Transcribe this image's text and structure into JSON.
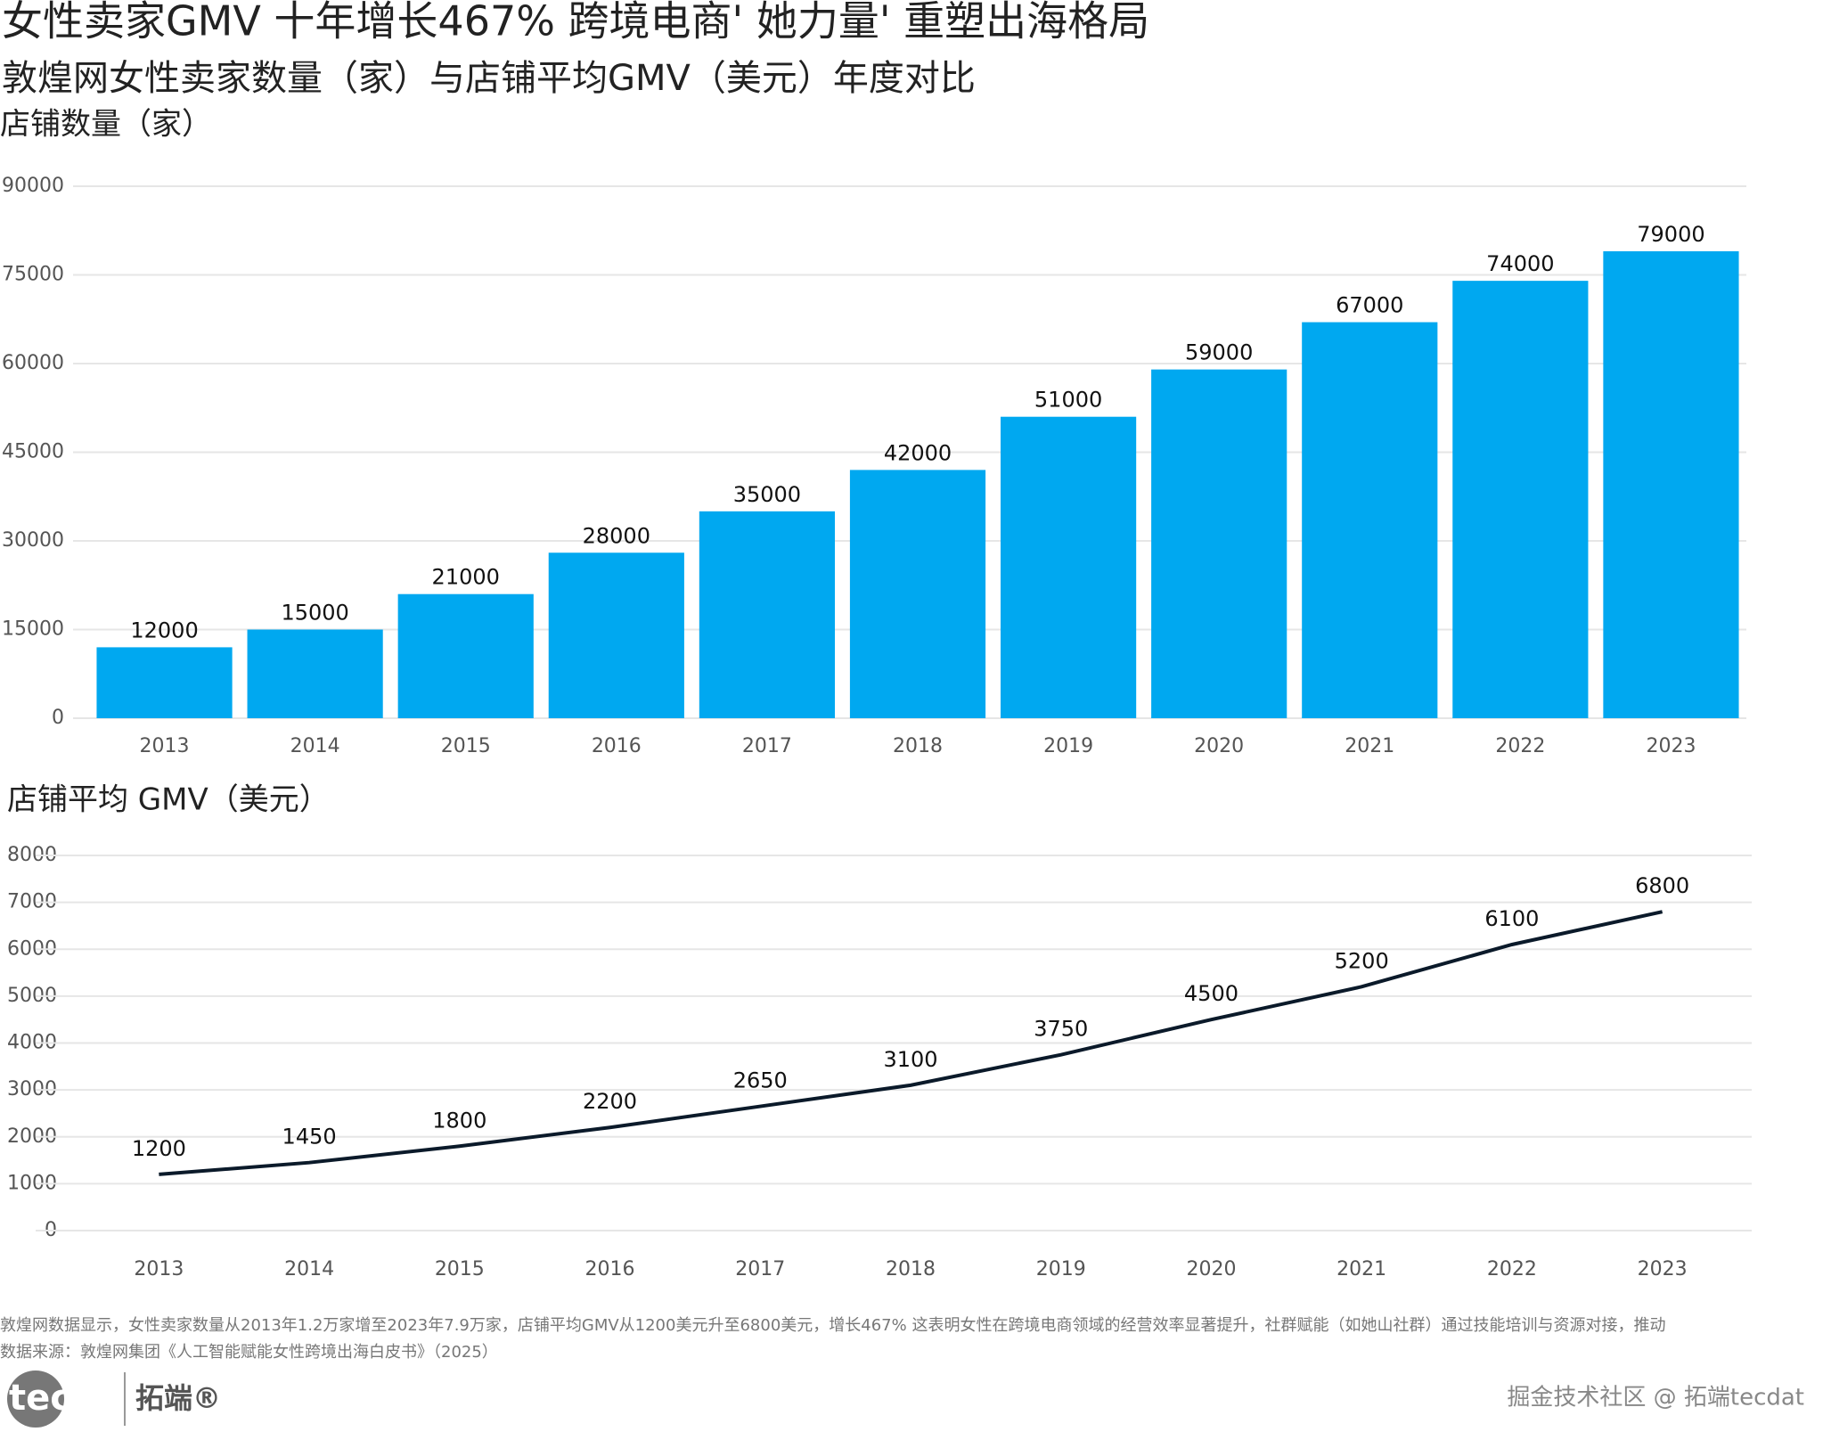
{
  "header": {
    "title": "女性卖家GMV 十年增长467%  跨境电商' 她力量' 重塑出海格局",
    "subtitle": "敦煌网女性卖家数量（家）与店铺平均GMV（美元）年度对比"
  },
  "chart_data": [
    {
      "type": "bar",
      "title": "店铺数量（家）",
      "categories": [
        "2013",
        "2014",
        "2015",
        "2016",
        "2017",
        "2018",
        "2019",
        "2020",
        "2021",
        "2022",
        "2023"
      ],
      "values": [
        12000,
        15000,
        21000,
        28000,
        35000,
        42000,
        51000,
        59000,
        67000,
        74000,
        79000
      ],
      "color": "#00a8f0",
      "ylim": [
        0,
        90000
      ],
      "yticks": [
        0,
        15000,
        30000,
        45000,
        60000,
        75000,
        90000
      ],
      "grid": true
    },
    {
      "type": "line",
      "title": "店铺平均 GMV（美元）",
      "categories": [
        "2013",
        "2014",
        "2015",
        "2016",
        "2017",
        "2018",
        "2019",
        "2020",
        "2021",
        "2022",
        "2023"
      ],
      "values": [
        1200,
        1450,
        1800,
        2200,
        2650,
        3100,
        3750,
        4500,
        5200,
        6100,
        6800
      ],
      "color": "#0b1a2a",
      "ylim": [
        0,
        8000
      ],
      "yticks": [
        0,
        1000,
        2000,
        3000,
        4000,
        5000,
        6000,
        7000,
        8000
      ],
      "grid": true
    }
  ],
  "footer": {
    "note": "敦煌网数据显示，女性卖家数量从2013年1.2万家增至2023年7.9万家，店铺平均GMV从1200美元升至6800美元，增长467%  这表明女性在跨境电商领域的经营效率显著提升，社群赋能（如她山社群）通过技能培训与资源对接，推动",
    "source": "数据来源：敦煌网集团《人工智能赋能女性跨境出海白皮书》（2025）",
    "brand": "tecdat",
    "brand_cn": "拓端®",
    "watermark": "掘金技术社区 @ 拓端tecdat"
  }
}
